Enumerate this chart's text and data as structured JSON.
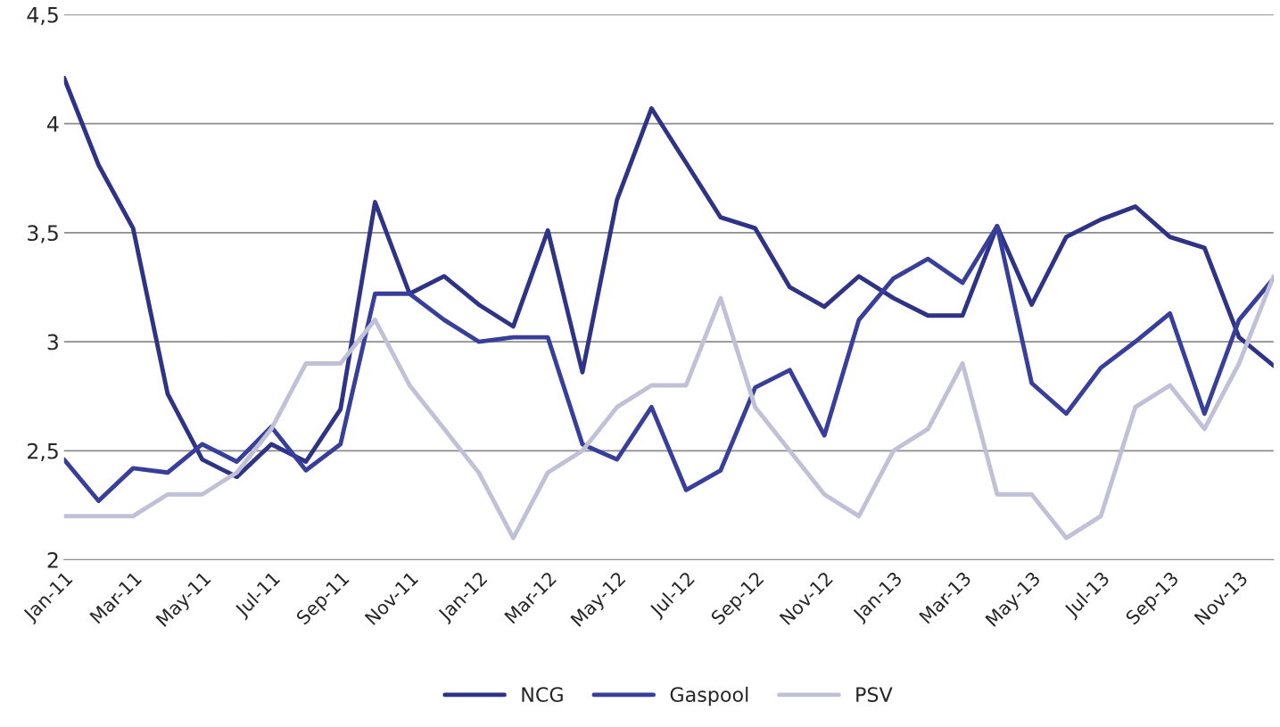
{
  "chart_data": {
    "type": "line",
    "categories": [
      "Jan-11",
      null,
      "Mar-11",
      null,
      "May-11",
      null,
      "Jul-11",
      null,
      "Sep-11",
      null,
      "Nov-11",
      null,
      "Jan-12",
      null,
      "Mar-12",
      null,
      "May-12",
      null,
      "Jul-12",
      null,
      "Sep-12",
      null,
      "Nov-12",
      null,
      "Jan-13",
      null,
      "Mar-13",
      null,
      "May-13",
      null,
      "Jul-13",
      null,
      "Sep-13",
      null,
      "Nov-13",
      null
    ],
    "series": [
      {
        "name": "NCG",
        "color": "#2e3386",
        "values": [
          4.21,
          3.81,
          3.52,
          2.76,
          2.46,
          2.38,
          2.53,
          2.45,
          2.69,
          3.64,
          3.22,
          3.3,
          3.17,
          3.07,
          3.51,
          2.86,
          3.65,
          4.07,
          3.82,
          3.57,
          3.52,
          3.25,
          3.16,
          3.3,
          3.2,
          3.12,
          3.12,
          3.53,
          3.17,
          3.48,
          3.56,
          3.62,
          3.48,
          3.43,
          3.02,
          2.89
        ]
      },
      {
        "name": "Gaspool",
        "color": "#383f9a",
        "values": [
          2.46,
          2.27,
          2.42,
          2.4,
          2.53,
          2.45,
          2.61,
          2.41,
          2.53,
          3.22,
          3.22,
          3.1,
          3.0,
          3.02,
          3.02,
          2.53,
          2.46,
          2.7,
          2.32,
          2.41,
          2.79,
          2.87,
          2.57,
          3.1,
          3.29,
          3.38,
          3.27,
          3.53,
          2.81,
          2.67,
          2.88,
          3.0,
          3.13,
          2.67,
          3.1,
          3.29
        ]
      },
      {
        "name": "PSV",
        "color": "#c0c0d6",
        "values": [
          2.2,
          2.2,
          2.2,
          2.3,
          2.3,
          2.4,
          2.6,
          2.9,
          2.9,
          3.1,
          2.8,
          2.6,
          2.4,
          2.1,
          2.4,
          2.5,
          2.7,
          2.8,
          2.8,
          3.2,
          2.7,
          2.5,
          2.3,
          2.2,
          2.5,
          2.6,
          2.9,
          2.3,
          2.3,
          2.1,
          2.2,
          2.7,
          2.8,
          2.6,
          2.9,
          3.3
        ]
      }
    ],
    "ylim": [
      2,
      4.5
    ],
    "yticks": [
      2,
      {
        "value": 2.5,
        "label": "2,5"
      },
      3,
      {
        "value": 3.5,
        "label": "3,5"
      },
      4,
      {
        "value": 4.5,
        "label": "4,5"
      }
    ],
    "grid": "y",
    "legend": "bottom",
    "marker": "none",
    "line_style": "solid"
  }
}
